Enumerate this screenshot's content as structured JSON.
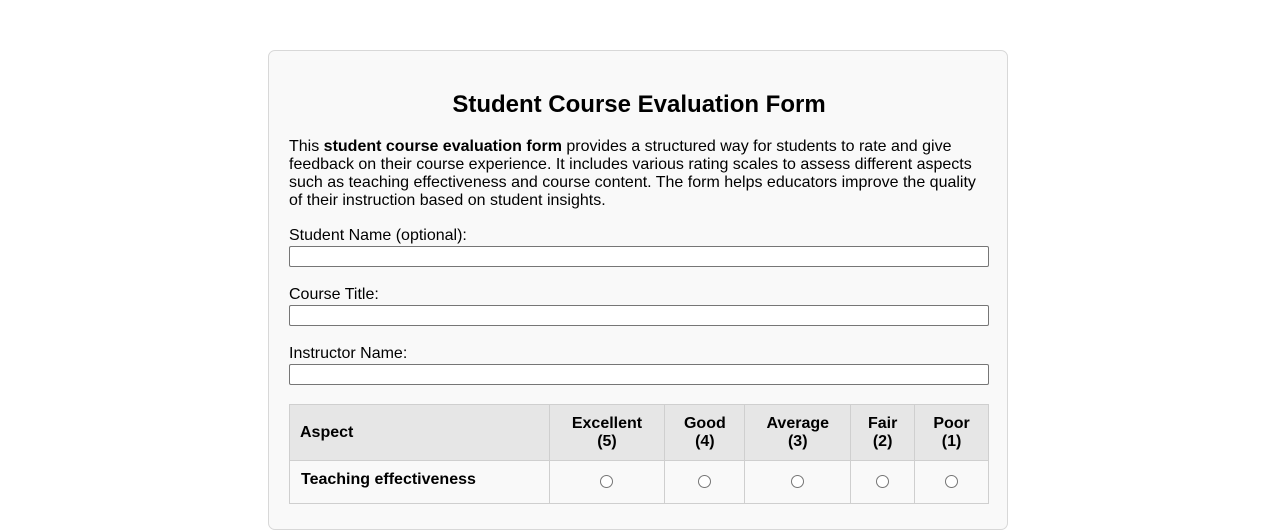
{
  "form": {
    "title": "Student Course Evaluation Form",
    "intro": {
      "prefix": "This ",
      "bold": "student course evaluation form",
      "suffix": " provides a structured way for students to rate and give feedback on their course experience. It includes various rating scales to assess different aspects such as teaching effectiveness and course content. The form helps educators improve the quality of their instruction based on student insights."
    },
    "fields": {
      "student_name": {
        "label": "Student Name (optional):",
        "value": ""
      },
      "course_title": {
        "label": "Course Title:",
        "value": ""
      },
      "instructor_name": {
        "label": "Instructor Name:",
        "value": ""
      }
    }
  },
  "rating_table": {
    "headers": {
      "aspect": "Aspect",
      "excellent": {
        "line1": "Excellent",
        "line2": "(5)"
      },
      "good": {
        "line1": "Good",
        "line2": "(4)"
      },
      "average": {
        "line1": "Average",
        "line2": "(3)"
      },
      "fair": {
        "line1": "Fair",
        "line2": "(2)"
      },
      "poor": {
        "line1": "Poor",
        "line2": "(1)"
      }
    },
    "rows": [
      {
        "aspect": "Teaching effectiveness",
        "selected": null
      }
    ]
  }
}
